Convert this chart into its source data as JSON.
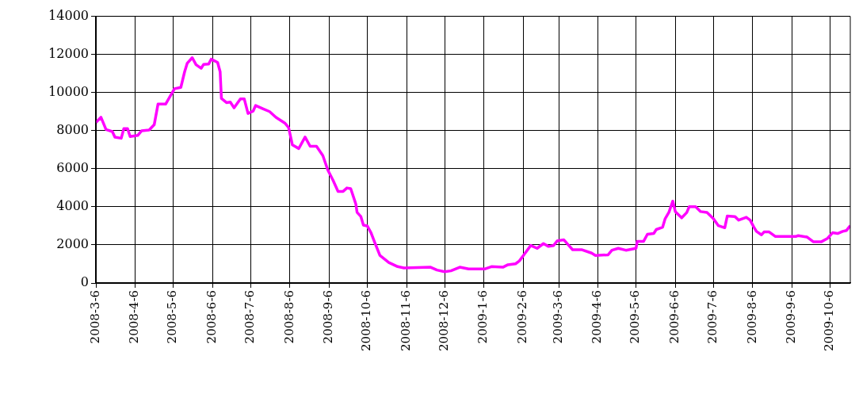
{
  "chart_data": {
    "type": "line",
    "x": [
      "2008-03-06",
      "2008-03-10",
      "2008-03-14",
      "2008-03-19",
      "2008-03-21",
      "2008-03-26",
      "2008-03-28",
      "2008-03-31",
      "2008-04-02",
      "2008-04-08",
      "2008-04-11",
      "2008-04-17",
      "2008-04-21",
      "2008-04-24",
      "2008-04-30",
      "2008-05-07",
      "2008-05-12",
      "2008-05-15",
      "2008-05-17",
      "2008-05-21",
      "2008-05-24",
      "2008-05-28",
      "2008-05-30",
      "2008-06-03",
      "2008-06-05",
      "2008-06-10",
      "2008-06-12",
      "2008-06-13",
      "2008-06-17",
      "2008-06-20",
      "2008-06-23",
      "2008-06-28",
      "2008-07-01",
      "2008-07-04",
      "2008-07-08",
      "2008-07-10",
      "2008-07-16",
      "2008-07-21",
      "2008-07-26",
      "2008-08-02",
      "2008-08-05",
      "2008-08-08",
      "2008-08-13",
      "2008-08-18",
      "2008-08-22",
      "2008-08-27",
      "2008-09-01",
      "2008-09-05",
      "2008-09-09",
      "2008-09-13",
      "2008-09-17",
      "2008-09-20",
      "2008-09-23",
      "2008-09-27",
      "2008-09-28",
      "2008-10-01",
      "2008-10-03",
      "2008-10-06",
      "2008-10-09",
      "2008-10-12",
      "2008-10-16",
      "2008-10-23",
      "2008-10-30",
      "2008-11-04",
      "2008-11-25",
      "2008-11-30",
      "2008-12-06",
      "2008-12-11",
      "2008-12-18",
      "2008-12-25",
      "2009-01-07",
      "2009-01-12",
      "2009-01-21",
      "2009-01-25",
      "2009-01-31",
      "2009-02-03",
      "2009-02-07",
      "2009-02-12",
      "2009-02-17",
      "2009-02-22",
      "2009-02-26",
      "2009-03-02",
      "2009-03-05",
      "2009-03-10",
      "2009-03-14",
      "2009-03-17",
      "2009-03-24",
      "2009-04-01",
      "2009-04-04",
      "2009-04-14",
      "2009-04-17",
      "2009-04-22",
      "2009-04-28",
      "2009-05-06",
      "2009-05-07",
      "2009-05-12",
      "2009-05-15",
      "2009-05-20",
      "2009-05-22",
      "2009-05-27",
      "2009-05-29",
      "2009-06-01",
      "2009-06-04",
      "2009-06-06",
      "2009-06-11",
      "2009-06-15",
      "2009-06-17",
      "2009-06-22",
      "2009-06-26",
      "2009-07-01",
      "2009-07-06",
      "2009-07-10",
      "2009-07-15",
      "2009-07-17",
      "2009-07-23",
      "2009-07-26",
      "2009-08-01",
      "2009-08-04",
      "2009-08-07",
      "2009-08-09",
      "2009-08-13",
      "2009-08-15",
      "2009-08-19",
      "2009-08-24",
      "2009-09-09",
      "2009-09-11",
      "2009-09-18",
      "2009-09-23",
      "2009-09-29",
      "2009-10-04",
      "2009-10-08",
      "2009-10-12",
      "2009-10-16",
      "2009-10-19",
      "2009-10-22"
    ],
    "series": [
      {
        "color": "#ff00ff",
        "values": [
          8430,
          8700,
          8060,
          7950,
          7660,
          7600,
          8100,
          8100,
          7690,
          7750,
          7990,
          8030,
          8310,
          9390,
          9390,
          10200,
          10270,
          11090,
          11530,
          11830,
          11460,
          11270,
          11480,
          11500,
          11750,
          11580,
          11090,
          9690,
          9470,
          9500,
          9200,
          9670,
          9670,
          8900,
          9020,
          9320,
          9140,
          9000,
          8700,
          8400,
          8160,
          7250,
          7060,
          7660,
          7180,
          7180,
          6690,
          5920,
          5400,
          4810,
          4810,
          4990,
          4950,
          4150,
          3710,
          3490,
          3040,
          3000,
          2640,
          2120,
          1450,
          1080,
          860,
          790,
          830,
          680,
          590,
          640,
          830,
          740,
          740,
          860,
          830,
          960,
          1010,
          1160,
          1520,
          1970,
          1820,
          2070,
          1920,
          1970,
          2220,
          2270,
          1970,
          1750,
          1750,
          1570,
          1450,
          1480,
          1720,
          1820,
          1720,
          1820,
          2190,
          2190,
          2560,
          2600,
          2810,
          2930,
          3380,
          3720,
          4300,
          3750,
          3420,
          3700,
          4010,
          4010,
          3750,
          3700,
          3380,
          3010,
          2900,
          3520,
          3490,
          3300,
          3450,
          3300,
          2930,
          2710,
          2530,
          2680,
          2680,
          2440,
          2440,
          2490,
          2410,
          2160,
          2160,
          2340,
          2640,
          2600,
          2710,
          2760,
          3010
        ]
      }
    ],
    "xlim": [
      "2008-03-06",
      "2009-10-22"
    ],
    "xticks": [
      {
        "value": "2008-03-06",
        "label": "2008-3-6"
      },
      {
        "value": "2008-04-06",
        "label": "2008-4-6"
      },
      {
        "value": "2008-05-06",
        "label": "2008-5-6"
      },
      {
        "value": "2008-06-06",
        "label": "2008-6-6"
      },
      {
        "value": "2008-07-06",
        "label": "2008-7-6"
      },
      {
        "value": "2008-08-06",
        "label": "2008-8-6"
      },
      {
        "value": "2008-09-06",
        "label": "2008-9-6"
      },
      {
        "value": "2008-10-06",
        "label": "2008-10-6"
      },
      {
        "value": "2008-11-06",
        "label": "2008-11-6"
      },
      {
        "value": "2008-12-06",
        "label": "2008-12-6"
      },
      {
        "value": "2009-01-06",
        "label": "2009-1-6"
      },
      {
        "value": "2009-02-06",
        "label": "2009-2-6"
      },
      {
        "value": "2009-03-06",
        "label": "2009-3-6"
      },
      {
        "value": "2009-04-06",
        "label": "2009-4-6"
      },
      {
        "value": "2009-05-06",
        "label": "2009-5-6"
      },
      {
        "value": "2009-06-06",
        "label": "2009-6-6"
      },
      {
        "value": "2009-07-06",
        "label": "2009-7-6"
      },
      {
        "value": "2009-08-06",
        "label": "2009-8-6"
      },
      {
        "value": "2009-09-06",
        "label": "2009-9-6"
      },
      {
        "value": "2009-10-06",
        "label": "2009-10-6"
      }
    ],
    "ylim": [
      0,
      14000
    ],
    "yticks": [
      0,
      2000,
      4000,
      6000,
      8000,
      10000,
      12000,
      14000
    ],
    "grid": true,
    "legend": false,
    "marker": "none",
    "line_style": "solid"
  }
}
